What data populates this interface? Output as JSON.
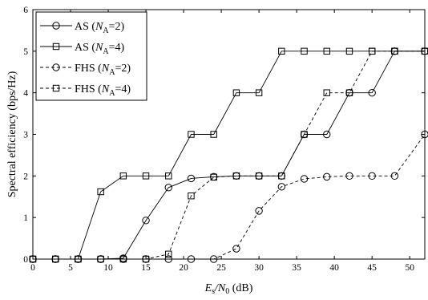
{
  "chart_data": {
    "type": "line",
    "xlabel": "E_s/N_0 (dB)",
    "xlabel_parts": {
      "main": "E",
      "sub1": "s",
      "slash": "/N",
      "sub2": "0",
      "unit": " (dB)"
    },
    "ylabel": "Spectral efficiency (bps/Hz)",
    "xlim": [
      0,
      52
    ],
    "ylim": [
      0,
      6
    ],
    "xticks": [
      0,
      5,
      10,
      15,
      20,
      25,
      30,
      35,
      40,
      45,
      50
    ],
    "yticks": [
      0,
      1,
      2,
      3,
      4,
      5,
      6
    ],
    "grid": false,
    "legend_position": "top-left",
    "series": [
      {
        "name": "AS (N_A=2)",
        "legend_prefix": "AS (",
        "legend_sym": "N",
        "legend_sub": "A",
        "legend_suffix": "=2)",
        "marker": "circle",
        "dash": "solid",
        "x": [
          0,
          3,
          6,
          9,
          12,
          15,
          18,
          21,
          24,
          27,
          30,
          33,
          36,
          39,
          42,
          45,
          48,
          52
        ],
        "values": [
          0,
          0,
          0,
          0,
          0.02,
          0.93,
          1.72,
          1.94,
          1.98,
          2,
          2,
          2,
          3,
          3,
          4,
          4,
          5,
          5
        ]
      },
      {
        "name": "AS (N_A=4)",
        "legend_prefix": "AS (",
        "legend_sym": "N",
        "legend_sub": "A",
        "legend_suffix": "=4)",
        "marker": "square",
        "dash": "solid",
        "x": [
          0,
          3,
          6,
          9,
          12,
          15,
          18,
          21,
          24,
          27,
          30,
          33,
          36,
          39,
          42,
          45,
          48,
          52
        ],
        "values": [
          0,
          0,
          0,
          1.62,
          2,
          2,
          2,
          3,
          3,
          4,
          4,
          5,
          5,
          5,
          5,
          5,
          5,
          5
        ]
      },
      {
        "name": "FHS (N_A=2)",
        "legend_prefix": "FHS (",
        "legend_sym": "N",
        "legend_sub": "A",
        "legend_suffix": "=2)",
        "marker": "circle",
        "dash": "dashed",
        "x": [
          0,
          3,
          6,
          9,
          12,
          15,
          18,
          21,
          24,
          27,
          30,
          33,
          36,
          39,
          42,
          45,
          48,
          52
        ],
        "values": [
          0,
          0,
          0,
          0,
          0,
          0,
          0,
          0,
          0,
          0.25,
          1.16,
          1.74,
          1.93,
          1.98,
          2,
          2,
          2,
          3
        ]
      },
      {
        "name": "FHS (N_A=4)",
        "legend_prefix": "FHS (",
        "legend_sym": "N",
        "legend_sub": "A",
        "legend_suffix": "=4)",
        "marker": "square",
        "dash": "dashed",
        "x": [
          0,
          3,
          6,
          9,
          12,
          15,
          18,
          21,
          24,
          27,
          30,
          33,
          36,
          39,
          42,
          45,
          48,
          52
        ],
        "values": [
          0,
          0,
          0,
          0,
          0,
          0,
          0.12,
          1.52,
          1.97,
          2,
          2,
          2,
          3,
          4,
          4,
          5,
          5,
          5
        ]
      }
    ]
  }
}
